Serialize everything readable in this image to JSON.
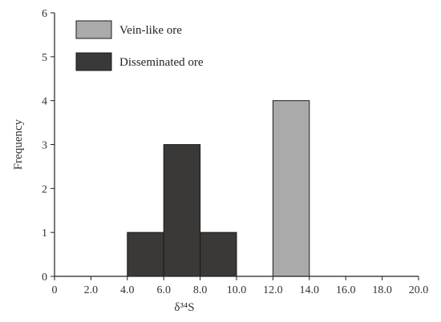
{
  "chart_data": {
    "type": "bar",
    "title": "",
    "xlabel": "δ³⁴S",
    "ylabel": "Frequency",
    "xlim": [
      0,
      20
    ],
    "ylim": [
      0,
      6
    ],
    "x_ticks": [
      "0",
      "2.0",
      "4.0",
      "6.0",
      "8.0",
      "10.0",
      "12.0",
      "14.0",
      "16.0",
      "18.0",
      "20.0"
    ],
    "y_ticks": [
      "0",
      "1",
      "2",
      "3",
      "4",
      "5",
      "6"
    ],
    "grid": false,
    "legend_position": "top-left",
    "series": [
      {
        "name": "Vein-like ore",
        "color": "#aaaaaa",
        "bins": [
          {
            "from": 12.0,
            "to": 14.0,
            "value": 4
          }
        ]
      },
      {
        "name": "Disseminated ore",
        "color": "#3b3838",
        "bins": [
          {
            "from": 4.0,
            "to": 6.0,
            "value": 1
          },
          {
            "from": 6.0,
            "to": 8.0,
            "value": 3
          },
          {
            "from": 8.0,
            "to": 10.0,
            "value": 1
          }
        ]
      }
    ]
  }
}
